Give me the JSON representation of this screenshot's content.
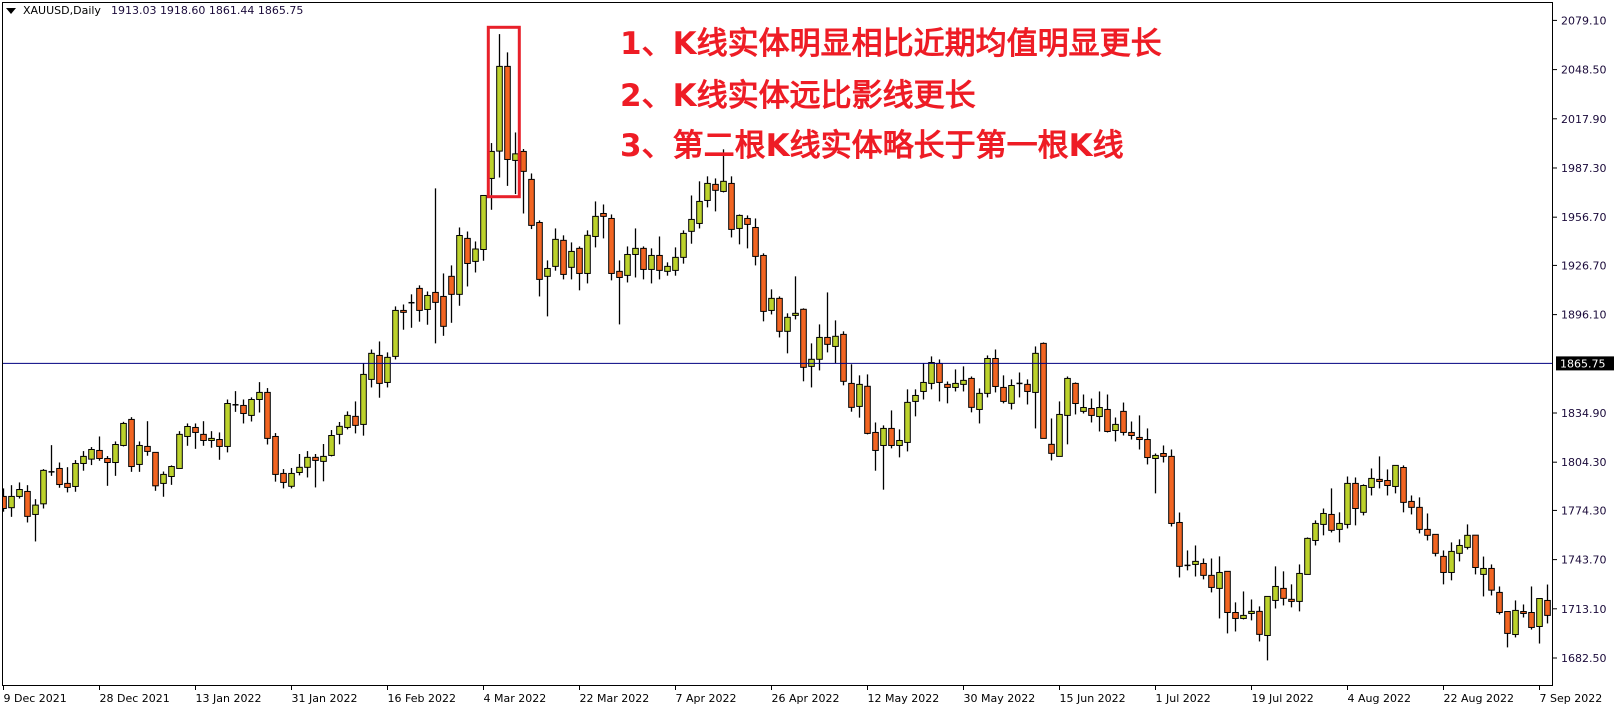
{
  "header": {
    "menu_icon": "triangle-down-icon",
    "symbol": "XAUUSD,Daily",
    "ohlc": "1913.03 1918.60 1861.44 1865.75"
  },
  "annotations": [
    "1、K线实体明显相比近期均值明显更长",
    "2、K线实体远比影线更长",
    "3、第二根K线实体略长于第一根K线"
  ],
  "colors": {
    "bull": "#bcd22c",
    "bear": "#f26522",
    "wick": "#000000",
    "price_line": "#000080",
    "highlight_box": "#e8202a",
    "annotation_text": "#ee1c25"
  },
  "chart_data": {
    "type": "candlestick",
    "title": "",
    "symbol": "XAUUSD",
    "timeframe": "Daily",
    "ylim": [
      1682.5,
      2079.1
    ],
    "y_ticks": [
      "2079.10",
      "2048.50",
      "2017.90",
      "1987.30",
      "1956.70",
      "1926.70",
      "1896.10",
      "1834.90",
      "1804.30",
      "1774.30",
      "1743.70",
      "1713.10",
      "1682.50"
    ],
    "current_price": "1865.75",
    "x_ticks": [
      {
        "label": "9 Dec 2021",
        "bar": 0
      },
      {
        "label": "28 Dec 2021",
        "bar": 12
      },
      {
        "label": "13 Jan 2022",
        "bar": 24
      },
      {
        "label": "31 Jan 2022",
        "bar": 36
      },
      {
        "label": "16 Feb 2022",
        "bar": 48
      },
      {
        "label": "4 Mar 2022",
        "bar": 60
      },
      {
        "label": "22 Mar 2022",
        "bar": 72
      },
      {
        "label": "7 Apr 2022",
        "bar": 84
      },
      {
        "label": "26 Apr 2022",
        "bar": 96
      },
      {
        "label": "12 May 2022",
        "bar": 108
      },
      {
        "label": "30 May 2022",
        "bar": 120
      },
      {
        "label": "15 Jun 2022",
        "bar": 132
      },
      {
        "label": "1 Jul 2022",
        "bar": 144
      },
      {
        "label": "19 Jul 2022",
        "bar": 156
      },
      {
        "label": "4 Aug 2022",
        "bar": 168
      },
      {
        "label": "22 Aug 2022",
        "bar": 180
      },
      {
        "label": "7 Sep 2022",
        "bar": 192
      }
    ],
    "highlight_bars": [
      62,
      63
    ],
    "ohlc_columns": [
      "open",
      "high",
      "low",
      "close"
    ],
    "ohlc": [
      [
        1783.0,
        1788.0,
        1773.5,
        1775.5
      ],
      [
        1776.0,
        1790.0,
        1770.3,
        1783.0
      ],
      [
        1783.0,
        1791.7,
        1781.7,
        1787.3
      ],
      [
        1786.1,
        1790.0,
        1766.8,
        1770.6
      ],
      [
        1771.8,
        1781.3,
        1755.0,
        1777.6
      ],
      [
        1778.4,
        1800.0,
        1775.5,
        1799.2
      ],
      [
        1798.3,
        1814.9,
        1795.8,
        1798.3
      ],
      [
        1800.4,
        1804.1,
        1788.4,
        1790.4
      ],
      [
        1791.1,
        1801.2,
        1785.5,
        1788.6
      ],
      [
        1789.2,
        1805.6,
        1785.9,
        1803.5
      ],
      [
        1803.5,
        1811.2,
        1799.0,
        1807.9
      ],
      [
        1806.2,
        1813.7,
        1802.5,
        1812.2
      ],
      [
        1811.6,
        1820.3,
        1805.2,
        1806.6
      ],
      [
        1806.6,
        1808.1,
        1789.6,
        1804.1
      ],
      [
        1804.1,
        1817.2,
        1795.8,
        1815.3
      ],
      [
        1814.7,
        1829.4,
        1814.1,
        1828.4
      ],
      [
        1830.9,
        1832.3,
        1798.3,
        1801.6
      ],
      [
        1802.9,
        1817.2,
        1798.3,
        1814.7
      ],
      [
        1814.1,
        1829.8,
        1808.3,
        1811.0
      ],
      [
        1810.4,
        1810.4,
        1786.5,
        1789.6
      ],
      [
        1791.1,
        1798.5,
        1782.8,
        1796.7
      ],
      [
        1795.4,
        1802.3,
        1790.2,
        1801.6
      ],
      [
        1800.4,
        1823.6,
        1800.4,
        1821.6
      ],
      [
        1820.3,
        1828.4,
        1814.5,
        1826.5
      ],
      [
        1825.9,
        1828.4,
        1812.6,
        1822.8
      ],
      [
        1821.6,
        1829.8,
        1814.5,
        1817.8
      ],
      [
        1817.8,
        1823.6,
        1813.3,
        1819.1
      ],
      [
        1818.4,
        1822.8,
        1805.8,
        1814.1
      ],
      [
        1814.1,
        1843.3,
        1810.4,
        1840.8
      ],
      [
        1840.0,
        1848.5,
        1835.6,
        1840.0
      ],
      [
        1839.6,
        1843.3,
        1828.4,
        1834.6
      ],
      [
        1833.4,
        1844.6,
        1829.6,
        1843.3
      ],
      [
        1843.3,
        1854.1,
        1835.2,
        1847.7
      ],
      [
        1847.7,
        1850.4,
        1815.3,
        1819.1
      ],
      [
        1820.3,
        1822.4,
        1792.2,
        1796.7
      ],
      [
        1797.3,
        1800.0,
        1788.0,
        1791.7
      ],
      [
        1789.3,
        1800.7,
        1788.0,
        1797.3
      ],
      [
        1797.9,
        1809.4,
        1796.1,
        1801.1
      ],
      [
        1801.1,
        1811.2,
        1794.8,
        1807.3
      ],
      [
        1807.3,
        1809.4,
        1788.6,
        1805.4
      ],
      [
        1804.8,
        1815.6,
        1792.4,
        1807.9
      ],
      [
        1808.5,
        1824.3,
        1807.9,
        1820.9
      ],
      [
        1821.6,
        1829.3,
        1815.4,
        1826.6
      ],
      [
        1825.9,
        1835.9,
        1824.7,
        1833.4
      ],
      [
        1832.8,
        1842.1,
        1822.2,
        1827.2
      ],
      [
        1827.8,
        1865.7,
        1820.8,
        1858.9
      ],
      [
        1855.8,
        1874.4,
        1850.8,
        1872.0
      ],
      [
        1870.7,
        1879.4,
        1844.4,
        1853.3
      ],
      [
        1853.9,
        1872.6,
        1850.8,
        1869.5
      ],
      [
        1870.1,
        1901.2,
        1868.2,
        1898.7
      ],
      [
        1898.7,
        1902.4,
        1886.7,
        1897.5
      ],
      [
        1903.5,
        1908.7,
        1887.9,
        1903.5
      ],
      [
        1912.4,
        1914.3,
        1891.7,
        1898.7
      ],
      [
        1899.3,
        1910.5,
        1889.8,
        1908.0
      ],
      [
        1909.9,
        1974.6,
        1878.2,
        1903.7
      ],
      [
        1907.4,
        1921.7,
        1882.9,
        1888.8
      ],
      [
        1919.9,
        1926.7,
        1891.0,
        1908.7
      ],
      [
        1908.7,
        1950.3,
        1901.6,
        1945.3
      ],
      [
        1943.5,
        1947.8,
        1913.6,
        1927.9
      ],
      [
        1929.2,
        1941.6,
        1922.3,
        1936.9
      ],
      [
        1936.6,
        1970.2,
        1929.6,
        1970.2
      ],
      [
        1980.8,
        2002.8,
        1961.3,
        1997.6
      ],
      [
        1997.8,
        2070.6,
        1981.4,
        2050.5
      ],
      [
        2050.5,
        2059.2,
        1976.2,
        1992.6
      ],
      [
        1992.0,
        2009.4,
        1971.1,
        1996.1
      ],
      [
        1997.6,
        1999.1,
        1959.0,
        1985.2
      ],
      [
        1980.2,
        1983.9,
        1949.3,
        1951.6
      ],
      [
        1953.4,
        1954.7,
        1907.4,
        1918.0
      ],
      [
        1919.9,
        1929.8,
        1895.0,
        1924.8
      ],
      [
        1926.1,
        1949.7,
        1923.4,
        1942.9
      ],
      [
        1942.3,
        1945.4,
        1918.0,
        1921.1
      ],
      [
        1925.5,
        1941.0,
        1918.0,
        1935.4
      ],
      [
        1937.3,
        1938.5,
        1911.2,
        1921.7
      ],
      [
        1921.7,
        1948.5,
        1915.5,
        1945.4
      ],
      [
        1944.7,
        1966.5,
        1937.9,
        1957.2
      ],
      [
        1959.0,
        1964.6,
        1943.5,
        1957.2
      ],
      [
        1955.9,
        1958.4,
        1917.4,
        1921.7
      ],
      [
        1923.0,
        1929.8,
        1890.0,
        1919.2
      ],
      [
        1920.5,
        1938.5,
        1916.1,
        1933.5
      ],
      [
        1933.5,
        1949.7,
        1919.2,
        1937.3
      ],
      [
        1937.3,
        1938.5,
        1918.0,
        1924.2
      ],
      [
        1924.2,
        1937.3,
        1915.5,
        1932.9
      ],
      [
        1932.9,
        1944.7,
        1918.0,
        1923.6
      ],
      [
        1923.0,
        1928.6,
        1920.3,
        1926.1
      ],
      [
        1923.6,
        1937.9,
        1920.3,
        1931.7
      ],
      [
        1931.7,
        1948.5,
        1927.8,
        1946.6
      ],
      [
        1947.9,
        1970.2,
        1940.2,
        1955.3
      ],
      [
        1952.8,
        1979.0,
        1949.7,
        1966.5
      ],
      [
        1967.1,
        1982.1,
        1962.8,
        1977.7
      ],
      [
        1977.1,
        1980.8,
        1960.3,
        1973.4
      ],
      [
        1972.7,
        1998.9,
        1972.1,
        1979.0
      ],
      [
        1977.7,
        1982.1,
        1944.1,
        1949.1
      ],
      [
        1949.7,
        1958.4,
        1939.8,
        1957.8
      ],
      [
        1955.9,
        1957.8,
        1937.3,
        1952.2
      ],
      [
        1950.3,
        1955.9,
        1926.7,
        1932.3
      ],
      [
        1932.9,
        1934.2,
        1891.9,
        1898.1
      ],
      [
        1898.7,
        1911.8,
        1896.2,
        1906.2
      ],
      [
        1906.2,
        1907.4,
        1881.9,
        1885.7
      ],
      [
        1885.7,
        1896.9,
        1872.0,
        1894.4
      ],
      [
        1895.6,
        1919.9,
        1893.1,
        1896.9
      ],
      [
        1899.4,
        1900.0,
        1854.6,
        1863.3
      ],
      [
        1863.9,
        1878.2,
        1850.8,
        1868.3
      ],
      [
        1868.3,
        1890.0,
        1861.4,
        1881.9
      ],
      [
        1881.9,
        1909.9,
        1872.6,
        1877.6
      ],
      [
        1876.3,
        1892.5,
        1865.8,
        1882.6
      ],
      [
        1883.8,
        1885.7,
        1852.1,
        1854.6
      ],
      [
        1853.3,
        1865.2,
        1835.7,
        1838.4
      ],
      [
        1839.0,
        1858.3,
        1832.0,
        1852.7
      ],
      [
        1851.5,
        1858.9,
        1821.6,
        1822.2
      ],
      [
        1822.8,
        1829.0,
        1799.0,
        1811.6
      ],
      [
        1814.7,
        1827.2,
        1787.2,
        1825.3
      ],
      [
        1825.3,
        1836.5,
        1812.9,
        1814.7
      ],
      [
        1814.7,
        1824.7,
        1807.3,
        1817.8
      ],
      [
        1816.6,
        1849.6,
        1811.0,
        1841.5
      ],
      [
        1842.1,
        1849.6,
        1832.8,
        1845.8
      ],
      [
        1848.3,
        1865.7,
        1843.3,
        1853.9
      ],
      [
        1853.3,
        1870.1,
        1849.6,
        1866.3
      ],
      [
        1865.7,
        1868.2,
        1842.1,
        1853.9
      ],
      [
        1852.7,
        1854.5,
        1840.9,
        1850.8
      ],
      [
        1850.8,
        1862.0,
        1848.3,
        1853.3
      ],
      [
        1852.7,
        1863.9,
        1848.3,
        1855.2
      ],
      [
        1856.4,
        1857.6,
        1835.3,
        1838.4
      ],
      [
        1837.1,
        1850.2,
        1828.4,
        1847.1
      ],
      [
        1847.1,
        1870.7,
        1844.6,
        1868.8
      ],
      [
        1868.8,
        1874.4,
        1847.7,
        1851.4
      ],
      [
        1850.8,
        1858.3,
        1840.9,
        1842.1
      ],
      [
        1840.9,
        1855.8,
        1837.1,
        1852.0
      ],
      [
        1853.3,
        1860.1,
        1844.6,
        1853.3
      ],
      [
        1852.7,
        1855.8,
        1840.2,
        1848.3
      ],
      [
        1847.7,
        1876.3,
        1825.3,
        1872.0
      ],
      [
        1878.2,
        1878.8,
        1819.1,
        1819.1
      ],
      [
        1815.4,
        1831.5,
        1805.4,
        1809.8
      ],
      [
        1807.9,
        1842.1,
        1807.9,
        1834.0
      ],
      [
        1833.4,
        1857.6,
        1815.4,
        1856.4
      ],
      [
        1853.3,
        1853.9,
        1834.0,
        1840.8
      ],
      [
        1835.9,
        1846.4,
        1834.6,
        1838.3
      ],
      [
        1837.7,
        1843.9,
        1829.0,
        1833.4
      ],
      [
        1832.7,
        1848.3,
        1823.4,
        1838.3
      ],
      [
        1837.1,
        1846.4,
        1822.8,
        1823.4
      ],
      [
        1824.0,
        1832.1,
        1817.2,
        1827.8
      ],
      [
        1835.9,
        1841.4,
        1820.9,
        1822.8
      ],
      [
        1822.8,
        1829.6,
        1818.4,
        1820.9
      ],
      [
        1819.7,
        1833.4,
        1812.2,
        1818.4
      ],
      [
        1818.4,
        1825.3,
        1802.9,
        1807.2
      ],
      [
        1806.6,
        1809.7,
        1784.9,
        1808.5
      ],
      [
        1809.7,
        1814.7,
        1804.1,
        1807.9
      ],
      [
        1807.9,
        1812.2,
        1764.3,
        1766.2
      ],
      [
        1766.8,
        1773.0,
        1732.6,
        1739.5
      ],
      [
        1740.1,
        1749.4,
        1737.0,
        1740.1
      ],
      [
        1740.7,
        1752.5,
        1733.2,
        1742.6
      ],
      [
        1741.3,
        1744.4,
        1731.4,
        1733.9
      ],
      [
        1733.9,
        1744.4,
        1723.3,
        1726.4
      ],
      [
        1725.8,
        1745.7,
        1707.1,
        1735.7
      ],
      [
        1736.4,
        1736.4,
        1697.8,
        1710.8
      ],
      [
        1710.8,
        1717.1,
        1699.0,
        1707.1
      ],
      [
        1707.1,
        1723.9,
        1706.5,
        1709.0
      ],
      [
        1710.2,
        1718.9,
        1705.9,
        1711.5
      ],
      [
        1711.5,
        1714.6,
        1692.8,
        1697.2
      ],
      [
        1696.5,
        1720.8,
        1681.0,
        1720.8
      ],
      [
        1718.3,
        1739.5,
        1713.3,
        1727.0
      ],
      [
        1725.8,
        1736.4,
        1715.2,
        1719.6
      ],
      [
        1719.0,
        1728.3,
        1714.0,
        1717.7
      ],
      [
        1717.7,
        1740.7,
        1711.5,
        1735.1
      ],
      [
        1734.5,
        1757.5,
        1734.5,
        1756.9
      ],
      [
        1755.6,
        1768.1,
        1752.5,
        1766.2
      ],
      [
        1765.6,
        1775.5,
        1758.8,
        1772.4
      ],
      [
        1771.8,
        1788.0,
        1760.6,
        1761.9
      ],
      [
        1762.5,
        1773.1,
        1754.4,
        1766.2
      ],
      [
        1765.6,
        1795.4,
        1763.1,
        1791.1
      ],
      [
        1791.1,
        1794.8,
        1765.0,
        1775.5
      ],
      [
        1773.1,
        1790.5,
        1771.2,
        1789.8
      ],
      [
        1788.6,
        1800.4,
        1783.6,
        1794.2
      ],
      [
        1793.6,
        1807.9,
        1788.0,
        1792.3
      ],
      [
        1792.9,
        1799.8,
        1783.6,
        1789.8
      ],
      [
        1789.2,
        1802.3,
        1784.9,
        1802.3
      ],
      [
        1801.0,
        1802.3,
        1773.1,
        1779.3
      ],
      [
        1779.9,
        1783.6,
        1771.8,
        1776.2
      ],
      [
        1776.2,
        1782.4,
        1760.0,
        1762.5
      ],
      [
        1762.5,
        1772.4,
        1755.6,
        1758.8
      ],
      [
        1759.4,
        1759.4,
        1745.7,
        1747.6
      ],
      [
        1745.7,
        1749.4,
        1728.3,
        1735.7
      ],
      [
        1735.7,
        1754.4,
        1730.8,
        1748.8
      ],
      [
        1747.6,
        1756.3,
        1742.6,
        1752.5
      ],
      [
        1751.3,
        1765.6,
        1750.0,
        1758.8
      ],
      [
        1758.9,
        1758.9,
        1734.5,
        1738.8
      ],
      [
        1734.5,
        1745.6,
        1720.8,
        1738.2
      ],
      [
        1738.2,
        1740.7,
        1721.4,
        1724.7
      ],
      [
        1723.3,
        1727.0,
        1709.6,
        1710.8
      ],
      [
        1711.4,
        1711.4,
        1689.1,
        1697.8
      ],
      [
        1697.1,
        1718.3,
        1695.3,
        1712.1
      ],
      [
        1711.4,
        1715.8,
        1707.7,
        1710.2
      ],
      [
        1710.8,
        1727.0,
        1700.2,
        1701.5
      ],
      [
        1702.1,
        1719.5,
        1691.5,
        1719.5
      ],
      [
        1718.3,
        1728.2,
        1704.0,
        1709.0
      ]
    ]
  }
}
